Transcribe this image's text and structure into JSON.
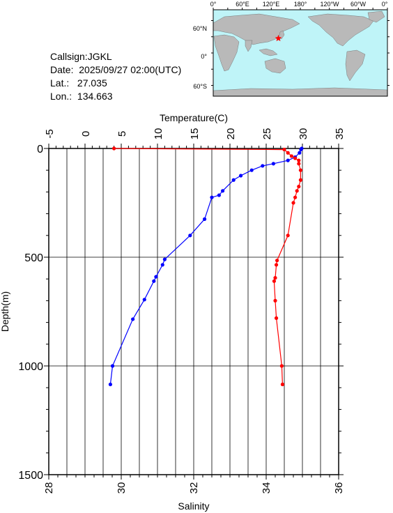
{
  "station": {
    "callsign": "Callsign:JGKL",
    "date": "Date:  2025/09/27 02:00(UTC)",
    "lat": "Lat.:   27.035",
    "lon": "Lon.:  134.663"
  },
  "map": {
    "lon_labels": [
      "0°",
      "60°E",
      "120°E",
      "180°",
      "120°W",
      "60°W",
      "0°"
    ],
    "lat_labels": [
      "60°N",
      "0°",
      "60°S"
    ],
    "marker": {
      "lat": 27.035,
      "lon": 134.663
    },
    "colors": {
      "ocean": "#bff4f8",
      "land": "#b9b9b9",
      "marker": "#ff0000"
    }
  },
  "chart_data": {
    "type": "line",
    "top_axis_label": "Temperature(C)",
    "bottom_axis_label": "Salinity",
    "ylabel": "Depth(m)",
    "temperature_range": [
      -5,
      35
    ],
    "temperature_ticks": [
      "-5",
      "0",
      "5",
      "10",
      "15",
      "20",
      "25",
      "30",
      "35"
    ],
    "salinity_range": [
      28,
      36
    ],
    "salinity_ticks": [
      "28",
      "30",
      "32",
      "34",
      "36"
    ],
    "depth_range": [
      0,
      1500
    ],
    "depth_ticks": [
      "0",
      "500",
      "1000",
      "1500"
    ],
    "grid": true,
    "series": [
      {
        "name": "Temperature",
        "axis": "top",
        "color": "#0000ff",
        "points": [
          [
            29.9,
            0
          ],
          [
            29.8,
            5
          ],
          [
            29.6,
            20
          ],
          [
            29.0,
            40
          ],
          [
            28.0,
            55
          ],
          [
            26.0,
            70
          ],
          [
            24.5,
            80
          ],
          [
            23.0,
            100
          ],
          [
            21.5,
            125
          ],
          [
            20.5,
            145
          ],
          [
            19.0,
            195
          ],
          [
            18.5,
            215
          ],
          [
            17.5,
            225
          ],
          [
            16.5,
            325
          ],
          [
            14.5,
            400
          ],
          [
            11.0,
            510
          ],
          [
            10.7,
            535
          ],
          [
            9.8,
            590
          ],
          [
            9.5,
            610
          ],
          [
            8.2,
            695
          ],
          [
            6.6,
            785
          ],
          [
            3.8,
            1000
          ],
          [
            3.5,
            1085
          ]
        ]
      },
      {
        "name": "Salinity",
        "axis": "bottom",
        "color": "#ff0000",
        "points": [
          [
            29.8,
            0
          ],
          [
            34.5,
            5
          ],
          [
            34.6,
            20
          ],
          [
            34.7,
            35
          ],
          [
            34.8,
            45
          ],
          [
            34.9,
            55
          ],
          [
            34.9,
            70
          ],
          [
            34.95,
            100
          ],
          [
            34.95,
            145
          ],
          [
            34.9,
            175
          ],
          [
            34.85,
            195
          ],
          [
            34.8,
            225
          ],
          [
            34.75,
            250
          ],
          [
            34.6,
            400
          ],
          [
            34.3,
            515
          ],
          [
            34.28,
            535
          ],
          [
            34.25,
            595
          ],
          [
            34.22,
            610
          ],
          [
            34.25,
            700
          ],
          [
            34.28,
            780
          ],
          [
            34.43,
            1000
          ],
          [
            34.45,
            1085
          ]
        ]
      }
    ]
  }
}
